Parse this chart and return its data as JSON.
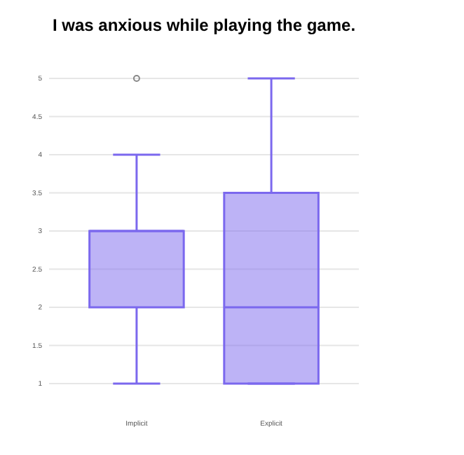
{
  "chart_data": {
    "type": "box",
    "title": "I was anxious while playing the game.",
    "categories": [
      "Implicit",
      "Explicit"
    ],
    "boxes": [
      {
        "low": 1,
        "q1": 2,
        "median": 3,
        "q3": 3,
        "high": 4,
        "outliers": [
          5
        ]
      },
      {
        "low": 1,
        "q1": 1,
        "median": 2,
        "q3": 3.5,
        "high": 5
      }
    ],
    "color": "#7b68ee",
    "ylim": [
      1,
      5
    ],
    "yticks": [
      1,
      1.5,
      2,
      2.5,
      3,
      3.5,
      4,
      4.5,
      5
    ],
    "grid": "y"
  }
}
